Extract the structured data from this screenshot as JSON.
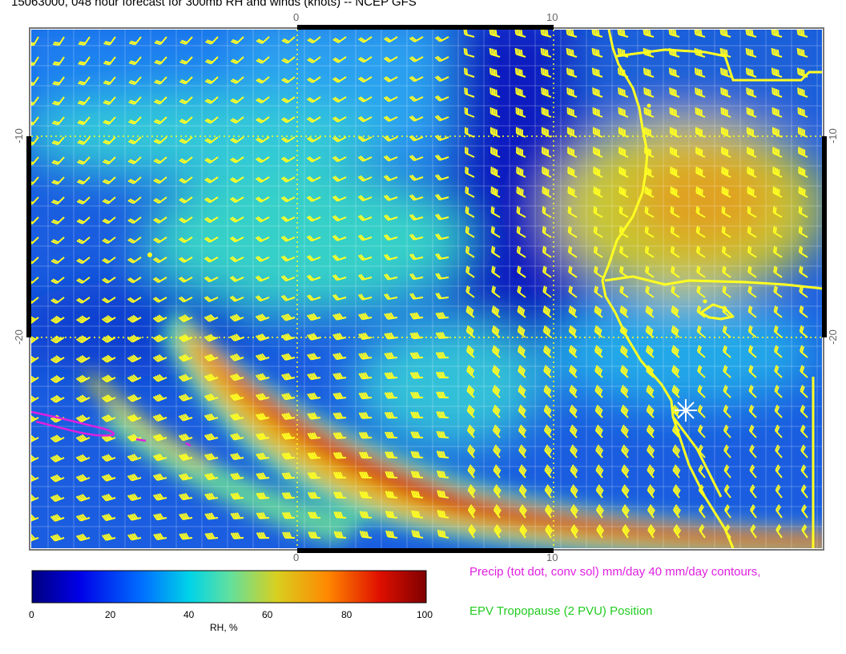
{
  "title": "15063000, 048 hour forecast for 300mb RH and winds (knots) -- NCEP GFS",
  "axes": {
    "top_ticks": [
      "0",
      "10"
    ],
    "bottom_ticks": [
      "0",
      "10"
    ],
    "left_ticks": [
      "-10",
      "-20"
    ],
    "right_ticks": [
      "-10",
      "-20"
    ]
  },
  "colorbar": {
    "title": "RH, %",
    "ticks": [
      "0",
      "20",
      "40",
      "60",
      "80",
      "100"
    ]
  },
  "legend": {
    "precip": "Precip (tot dot, conv sol) mm/day 40 mm/day contours,",
    "epv": "EPV Tropopause (2 PVU) Position",
    "precip_color": "#e020e0",
    "epv_color": "#22cc22"
  },
  "colors": {
    "barb": "#ffff22",
    "coast": "#ffff22"
  }
}
